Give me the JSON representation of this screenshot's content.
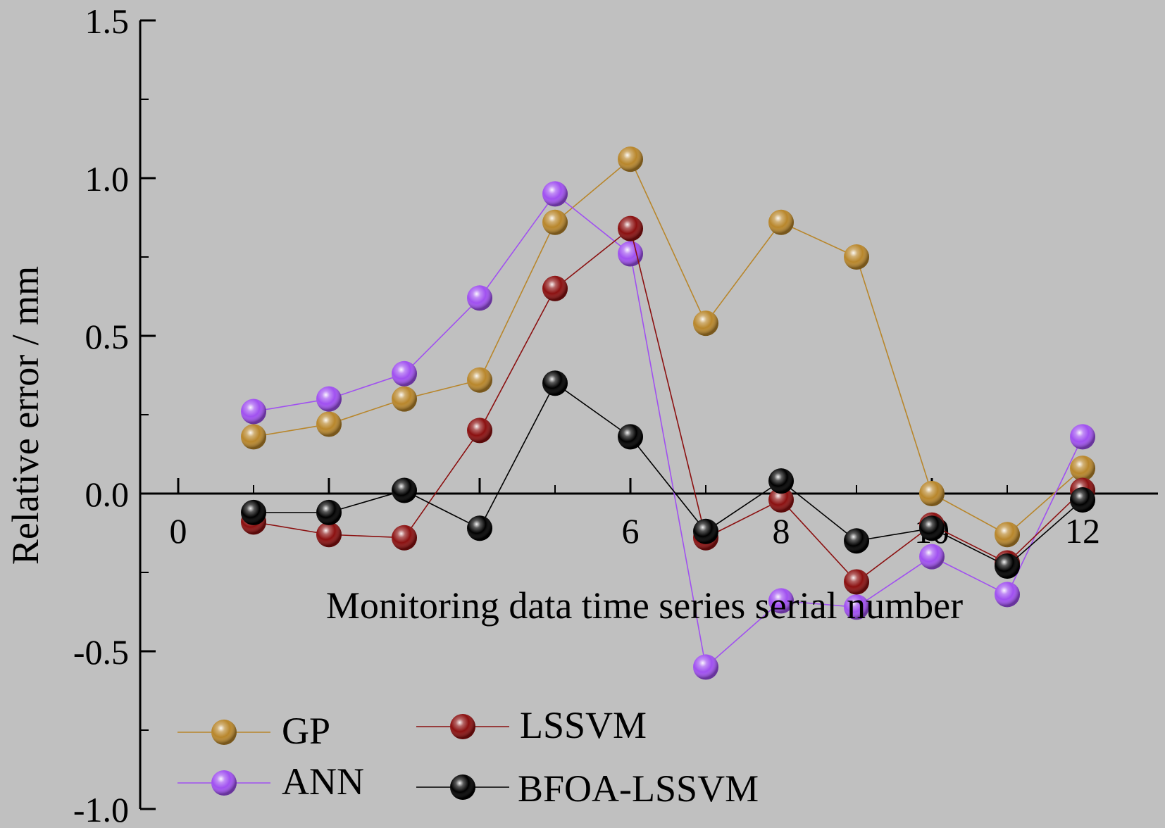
{
  "chart_data": {
    "type": "line",
    "title": "",
    "xlabel": "Monitoring data time series serial number",
    "ylabel": "Relative error / mm",
    "xlim": [
      -1,
      13
    ],
    "ylim": [
      -1.0,
      1.5
    ],
    "x_ticks": [
      0,
      2,
      4,
      6,
      8,
      10,
      12
    ],
    "x_tick_labels": [
      "0",
      "",
      "",
      "6",
      "8",
      "10",
      "12"
    ],
    "y_ticks": [
      -1.0,
      -0.5,
      0.0,
      0.5,
      1.0,
      1.5
    ],
    "y_tick_labels": [
      "-1.0",
      "-0.5",
      "0.0",
      "0.5",
      "1.0",
      "1.5"
    ],
    "x": [
      1,
      2,
      3,
      4,
      5,
      6,
      7,
      8,
      9,
      10,
      11,
      12
    ],
    "grid": false,
    "legend_position": "bottom-left",
    "series": [
      {
        "name": "GP",
        "color": "#b8862b",
        "values": [
          0.18,
          0.22,
          0.3,
          0.36,
          0.86,
          1.06,
          0.54,
          0.86,
          0.75,
          0.0,
          -0.13,
          0.08
        ]
      },
      {
        "name": "ANN",
        "color": "#a050f0",
        "values": [
          0.26,
          0.3,
          0.38,
          0.62,
          0.95,
          0.76,
          -0.55,
          -0.34,
          -0.36,
          -0.2,
          -0.32,
          0.18
        ]
      },
      {
        "name": "LSSVM",
        "color": "#8b1010",
        "values": [
          -0.09,
          -0.13,
          -0.14,
          0.2,
          0.65,
          0.84,
          -0.14,
          -0.02,
          -0.28,
          -0.1,
          -0.22,
          0.01
        ]
      },
      {
        "name": "BFOA-LSSVM",
        "color": "#000000",
        "values": [
          -0.06,
          -0.06,
          0.01,
          -0.11,
          0.35,
          0.18,
          -0.12,
          0.04,
          -0.15,
          -0.11,
          -0.23,
          -0.02
        ]
      }
    ]
  }
}
